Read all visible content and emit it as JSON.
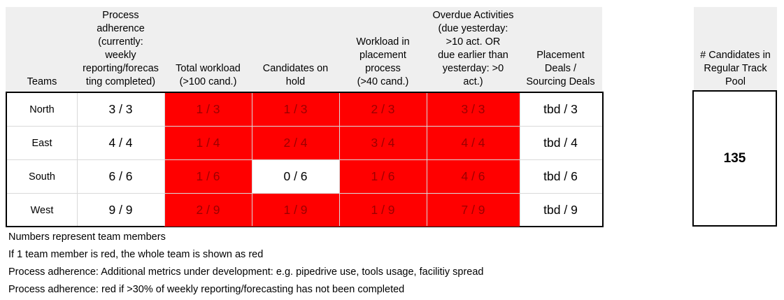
{
  "columns": [
    "Teams",
    "Process\nadherence\n(currently:\nweekly\nreporting/forecas\nting completed)",
    "Total workload\n(>100 cand.)",
    "Candidates on\nhold",
    "Workload in\nplacement\nprocess\n(>40 cand.)",
    "Overdue Activities\n(due yesterday:\n>10 act. OR\ndue earlier than\nyesterday: >0\nact.)",
    "Placement\nDeals /\nSourcing Deals"
  ],
  "rows": [
    {
      "team": "North",
      "cells": [
        {
          "value": "3 / 3",
          "status": "ok"
        },
        {
          "value": "1 / 3",
          "status": "red"
        },
        {
          "value": "1 / 3",
          "status": "red"
        },
        {
          "value": "2 / 3",
          "status": "red"
        },
        {
          "value": "3 / 3",
          "status": "red"
        },
        {
          "value": "tbd / 3",
          "status": "ok"
        }
      ]
    },
    {
      "team": "East",
      "cells": [
        {
          "value": "4 / 4",
          "status": "ok"
        },
        {
          "value": "1 / 4",
          "status": "red"
        },
        {
          "value": "2 / 4",
          "status": "red"
        },
        {
          "value": "3 / 4",
          "status": "red"
        },
        {
          "value": "4 / 4",
          "status": "red"
        },
        {
          "value": "tbd / 4",
          "status": "ok"
        }
      ]
    },
    {
      "team": "South",
      "cells": [
        {
          "value": "6 / 6",
          "status": "ok"
        },
        {
          "value": "1 / 6",
          "status": "red"
        },
        {
          "value": "0 / 6",
          "status": "ok"
        },
        {
          "value": "1 / 6",
          "status": "red"
        },
        {
          "value": "4 / 6",
          "status": "red"
        },
        {
          "value": "tbd / 6",
          "status": "ok"
        }
      ]
    },
    {
      "team": "West",
      "cells": [
        {
          "value": "9 / 9",
          "status": "ok"
        },
        {
          "value": "2 / 9",
          "status": "red"
        },
        {
          "value": "1 / 9",
          "status": "red"
        },
        {
          "value": "1 / 9",
          "status": "red"
        },
        {
          "value": "7 / 9",
          "status": "red"
        },
        {
          "value": "tbd / 9",
          "status": "ok"
        }
      ]
    }
  ],
  "pool": {
    "header": "# Candidates in\nRegular Track\nPool",
    "value": "135"
  },
  "notes": [
    "Numbers represent team members",
    "If 1 team member is red, the whole team is shown as red",
    "Process adherence: Additional metrics under development: e.g. pipedrive use, tools usage, facilitiy spread",
    "Process adherence: red if >30% of weekly reporting/forecasting has not been completed"
  ],
  "colors": {
    "red": "#ff0000",
    "red_text": "#9b0000",
    "header_bg": "#efefef"
  }
}
